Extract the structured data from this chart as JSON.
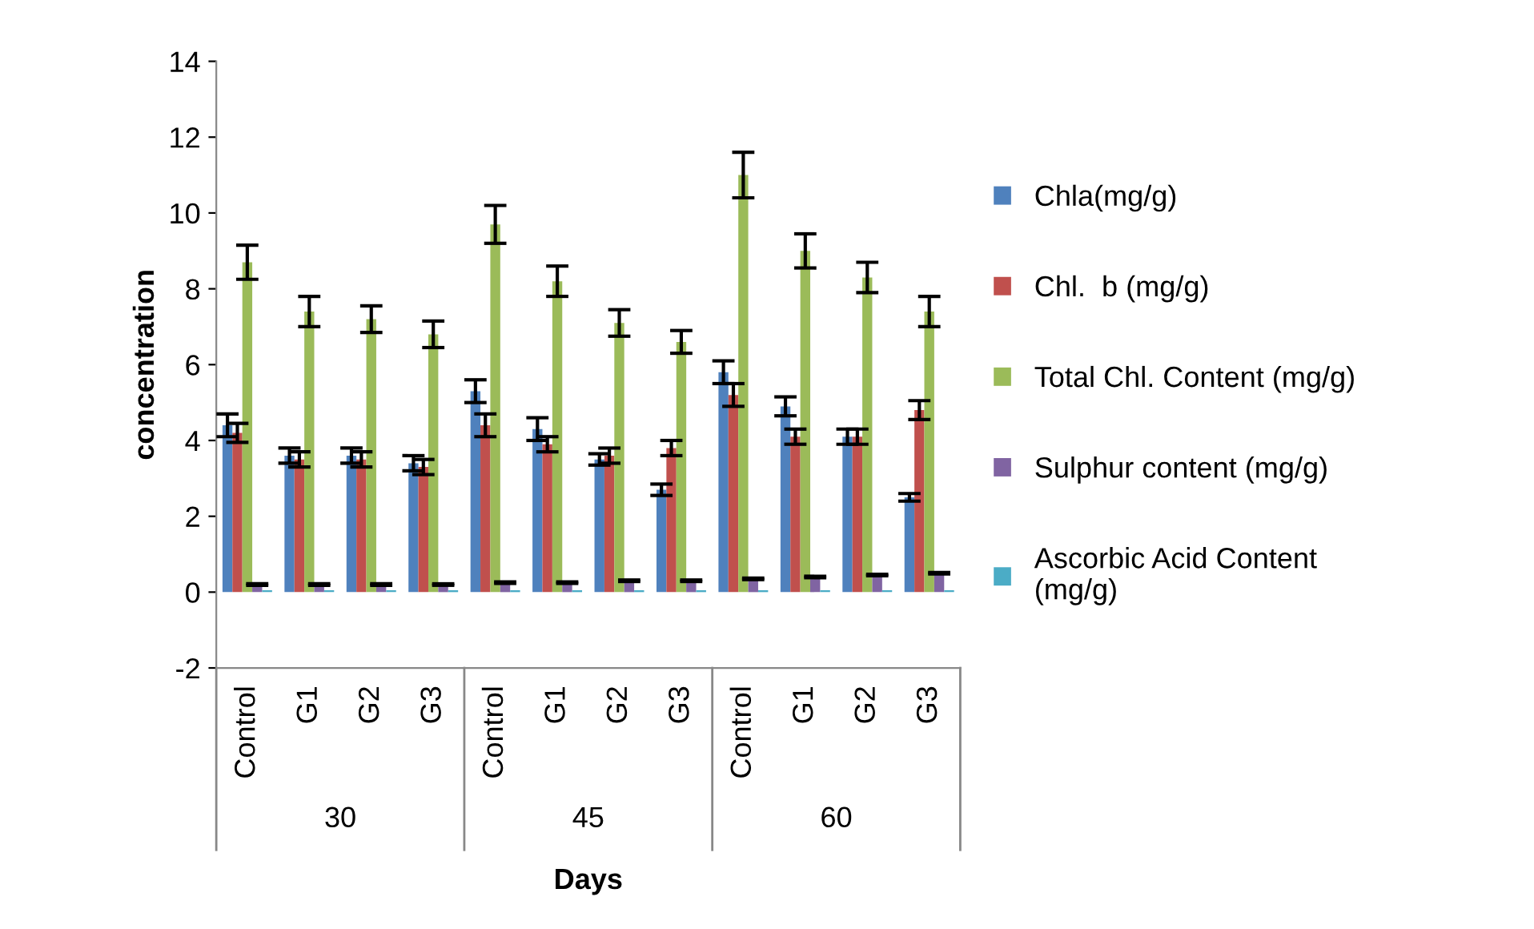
{
  "chart_data": {
    "type": "bar",
    "xlabel": "Days",
    "ylabel": "concentration",
    "categories": [
      "Control",
      "G1",
      "G2",
      "G3",
      "Control",
      "G1",
      "G2",
      "G3",
      "Control",
      "G1",
      "G2",
      "G3"
    ],
    "annotations": [
      "30",
      "45",
      "60"
    ],
    "series": [
      {
        "name": "Chla(mg/g)",
        "color": "#4f81bd",
        "values": [
          4.4,
          3.6,
          3.6,
          3.4,
          5.3,
          4.3,
          3.5,
          2.7,
          5.8,
          4.9,
          4.1,
          2.5
        ],
        "errors": [
          0.3,
          0.2,
          0.2,
          0.2,
          0.3,
          0.3,
          0.15,
          0.15,
          0.3,
          0.25,
          0.2,
          0.1
        ]
      },
      {
        "name": "Chl.  b (mg/g)",
        "color": "#c0504d",
        "values": [
          4.2,
          3.5,
          3.5,
          3.3,
          4.4,
          3.9,
          3.6,
          3.8,
          5.2,
          4.1,
          4.1,
          4.8
        ],
        "errors": [
          0.25,
          0.2,
          0.2,
          0.2,
          0.3,
          0.2,
          0.2,
          0.2,
          0.3,
          0.2,
          0.2,
          0.25
        ]
      },
      {
        "name": "Total Chl. Content (mg/g)",
        "color": "#9bbb59",
        "values": [
          8.7,
          7.4,
          7.2,
          6.8,
          9.7,
          8.2,
          7.1,
          6.6,
          11.0,
          9.0,
          8.3,
          7.4
        ],
        "errors": [
          0.45,
          0.4,
          0.35,
          0.35,
          0.5,
          0.4,
          0.35,
          0.3,
          0.6,
          0.45,
          0.4,
          0.4
        ]
      },
      {
        "name": "Sulphur content (mg/g)",
        "color": "#8064a2",
        "values": [
          0.2,
          0.2,
          0.2,
          0.2,
          0.25,
          0.25,
          0.3,
          0.3,
          0.35,
          0.4,
          0.45,
          0.5
        ],
        "errors": [
          0.02,
          0.02,
          0.02,
          0.02,
          0.02,
          0.02,
          0.02,
          0.02,
          0.02,
          0.02,
          0.02,
          0.02
        ]
      },
      {
        "name": "Ascorbic Acid Content\n(mg/g)",
        "color": "#4bacc6",
        "values": [
          0.05,
          0.05,
          0.05,
          0.05,
          0.05,
          0.05,
          0.05,
          0.05,
          0.05,
          0.05,
          0.05,
          0.05
        ]
      }
    ],
    "ylim": [
      -2,
      14
    ],
    "yticks": [
      -2,
      0,
      2,
      4,
      6,
      8,
      10,
      12,
      14
    ],
    "grid": false,
    "legend": "right"
  }
}
